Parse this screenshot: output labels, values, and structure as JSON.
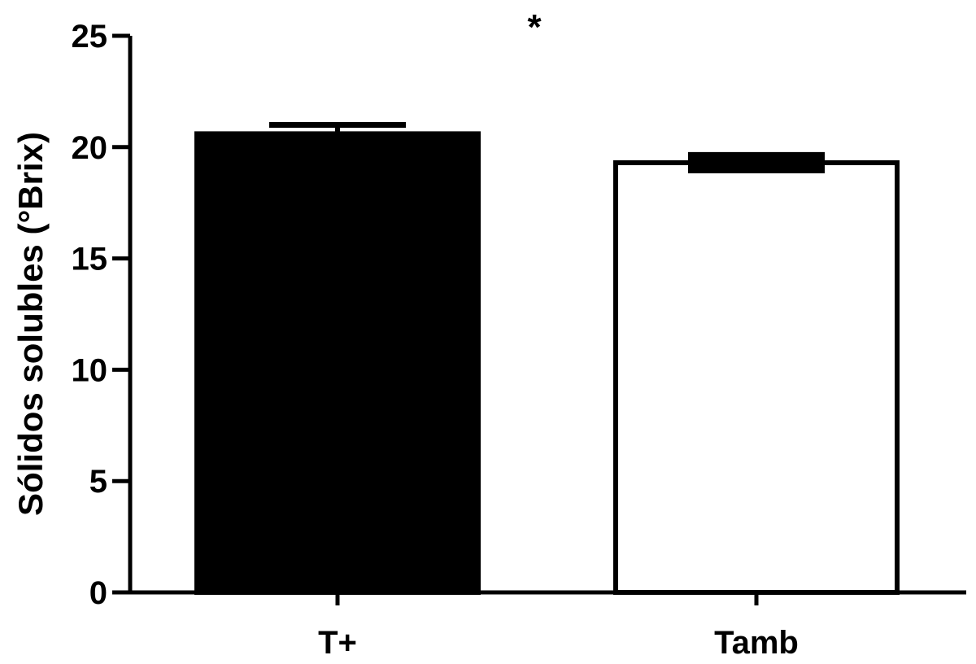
{
  "chart_data": {
    "type": "bar",
    "categories": [
      "T+",
      "Tamb"
    ],
    "values": [
      20.6,
      19.3
    ],
    "errors": [
      0.4,
      0.35
    ],
    "colors": [
      "#000000",
      "#ffffff"
    ],
    "ylabel": "Sólidos solubles (°Brix)",
    "xlabel": "",
    "ylim": [
      0,
      25
    ],
    "yticks": [
      "0",
      "5",
      "10",
      "15",
      "20",
      "25"
    ],
    "annotation": "*",
    "grid": false
  }
}
